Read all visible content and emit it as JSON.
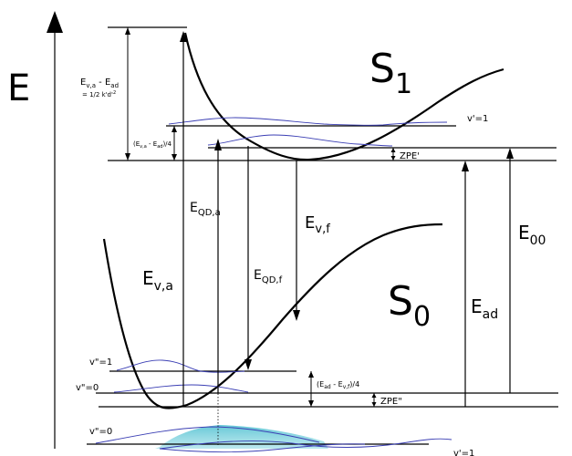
{
  "axis": {
    "label": "E"
  },
  "states": {
    "excited": {
      "label": "S",
      "subscript": "1"
    },
    "ground": {
      "label": "S",
      "subscript": "0"
    }
  },
  "levels": {
    "v_prime_1": "v'=1",
    "v_dprime_1": "v\"=1",
    "v_dprime_0": "v\"=0",
    "v_dprime_0_bottom": "v\"=0",
    "v_prime_1_bottom": "v'=1",
    "zpe_prime": "ZPE'",
    "zpe_dprime": "ZPE\""
  },
  "annotations": {
    "reorg_upper": {
      "main": "E",
      "sub1": "v,a",
      "mid": " - E",
      "sub2": "ad",
      "line2": "= 1/2 k'd'",
      "sup": "2"
    },
    "reorg_upper_quarter": {
      "pre": "(E",
      "sub1": "v,a",
      "mid": " - E",
      "sub2": "ad",
      "post": ")/4"
    },
    "reorg_lower_quarter": {
      "pre": "(E",
      "sub1": "ad",
      "mid": " - E",
      "sub2": "v,f",
      "post": ")/4"
    }
  },
  "transitions": {
    "E_v_a": {
      "main": "E",
      "sub": "v,a"
    },
    "E_QD_a": {
      "main": "E",
      "sub": "QD,a"
    },
    "E_QD_f": {
      "main": "E",
      "sub": "QD,f"
    },
    "E_v_f": {
      "main": "E",
      "sub": "v,f"
    },
    "E_ad": {
      "main": "E",
      "sub": "ad"
    },
    "E_00": {
      "main": "E",
      "sub": "00"
    }
  },
  "colors": {
    "wavefunction": "#3b3fb4",
    "overlap_fill": "#5cc4d4",
    "line": "#000000"
  }
}
